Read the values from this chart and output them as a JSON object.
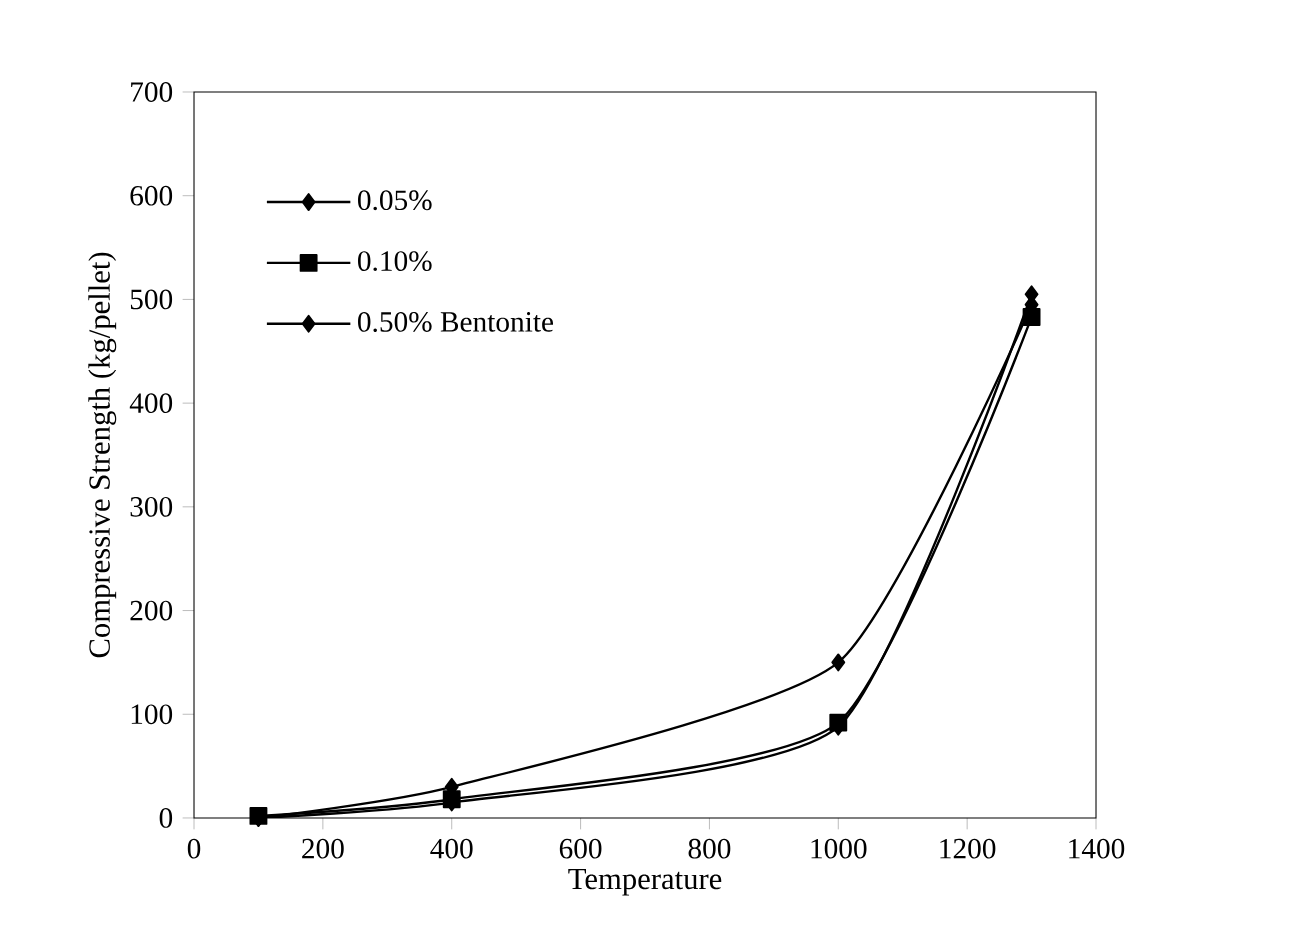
{
  "chart_data": {
    "type": "line",
    "xlabel": "Temperature",
    "ylabel": "Compressive Strength (kg/pellet)",
    "x": [
      100,
      400,
      1000,
      1300
    ],
    "series": [
      {
        "name": "0.05%",
        "color": "#000000",
        "marker": "diamond",
        "values": [
          0,
          15,
          88,
          505
        ]
      },
      {
        "name": "0.10%",
        "color": "#000000",
        "marker": "square",
        "values": [
          2,
          18,
          92,
          483
        ]
      },
      {
        "name": "0.50% Bentonite",
        "color": "#000000",
        "marker": "diamond",
        "values": [
          0,
          30,
          150,
          495
        ]
      }
    ],
    "xlim": [
      0,
      1400
    ],
    "xticks": [
      0,
      200,
      400,
      600,
      800,
      1000,
      1200,
      1400
    ],
    "ylim": [
      0,
      700
    ],
    "yticks": [
      0,
      100,
      200,
      300,
      400,
      500,
      600,
      700
    ],
    "legend": "top left",
    "line_style": "solid"
  }
}
